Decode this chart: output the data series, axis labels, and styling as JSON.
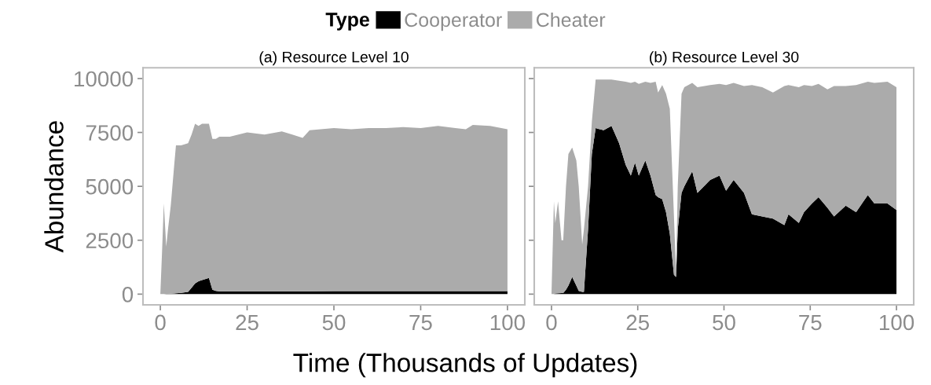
{
  "chart_data": [
    {
      "type": "area",
      "stacked": true,
      "title": "(a) Resource Level 10",
      "xlabel": "Time (Thousands of Updates)",
      "ylabel": "Abundance",
      "legend_title": "Type",
      "legend": "top",
      "grid": false,
      "x": [
        0,
        0.5,
        1,
        1.7,
        2.2,
        3,
        4,
        4.5,
        6,
        8,
        9,
        10,
        11,
        12,
        14,
        15,
        16,
        17,
        20,
        25,
        30,
        35,
        38,
        41,
        43,
        50,
        55,
        60,
        65,
        70,
        75,
        80,
        85,
        88,
        90,
        95,
        100
      ],
      "series": [
        {
          "name": "Cooperator",
          "color": "#000000",
          "values": [
            0,
            0,
            0,
            10,
            10,
            20,
            30,
            40,
            60,
            100,
            300,
            500,
            600,
            650,
            750,
            200,
            150,
            130,
            130,
            130,
            130,
            130,
            130,
            130,
            130,
            140,
            140,
            140,
            140,
            140,
            140,
            140,
            140,
            140,
            140,
            140,
            140
          ]
        },
        {
          "name": "Cheater",
          "color": "#ababab",
          "values": [
            0,
            2000,
            4200,
            2190,
            2990,
            4080,
            5970,
            6860,
            6840,
            6900,
            7100,
            7400,
            7200,
            7250,
            7150,
            7000,
            7050,
            7170,
            7170,
            7370,
            7270,
            7420,
            7270,
            7120,
            7470,
            7560,
            7510,
            7560,
            7560,
            7610,
            7560,
            7660,
            7560,
            7510,
            7710,
            7660,
            7510
          ]
        }
      ],
      "xlim": [
        -5,
        105
      ],
      "xticks": [
        0,
        25,
        50,
        75,
        100
      ],
      "ylim": [
        -500,
        10500
      ],
      "yticks": [
        0,
        2500,
        5000,
        7500,
        10000
      ]
    },
    {
      "type": "area",
      "stacked": true,
      "title": "(b) Resource Level 30",
      "legend": false,
      "grid": false,
      "tick_labels": "x",
      "x": [
        0,
        0.7,
        1.1,
        1.9,
        2.9,
        3.4,
        4.2,
        4.9,
        6.0,
        7.2,
        7.9,
        8.9,
        9.4,
        10.6,
        11.7,
        12.8,
        15.1,
        17.4,
        19.6,
        21.5,
        23.0,
        24.2,
        25.3,
        27.2,
        28.7,
        30.2,
        30.9,
        32.1,
        33.2,
        34.3,
        35.5,
        36.1,
        36.6,
        37.7,
        38.5,
        40.8,
        42.3,
        46.0,
        48.7,
        50.6,
        52.8,
        55.8,
        58.1,
        61.1,
        64.2,
        67.5,
        68.7,
        71.7,
        73.2,
        75.5,
        77.4,
        80.0,
        81.9,
        85.3,
        88.3,
        91.7,
        93.6,
        97.4,
        100
      ],
      "series": [
        {
          "color": "#000000",
          "values": [
            0,
            0,
            30,
            40,
            50,
            50,
            200,
            400,
            800,
            400,
            150,
            100,
            100,
            3000,
            6500,
            7700,
            7600,
            7800,
            7000,
            6000,
            5500,
            6100,
            5500,
            6200,
            5500,
            4600,
            4500,
            4400,
            3800,
            2800,
            900,
            800,
            3000,
            4700,
            5000,
            5700,
            4700,
            5300,
            5500,
            4800,
            5300,
            4700,
            3700,
            3600,
            3500,
            3200,
            3700,
            3300,
            3800,
            4200,
            4500,
            4000,
            3600,
            4100,
            3800,
            4600,
            4200,
            4200,
            3900
          ]
        },
        {
          "color": "#ababab",
          "values": [
            0,
            4300,
            3270,
            4260,
            2450,
            2450,
            4800,
            6100,
            6000,
            5800,
            4850,
            2200,
            2900,
            2000,
            1500,
            2250,
            2350,
            2150,
            2900,
            3850,
            4300,
            3750,
            4250,
            3650,
            4300,
            5250,
            4850,
            5300,
            5500,
            5800,
            2700,
            200,
            2000,
            4600,
            4600,
            4100,
            4900,
            4400,
            4250,
            4900,
            4500,
            4950,
            6000,
            6000,
            5850,
            6450,
            6000,
            6300,
            5900,
            5450,
            5250,
            5500,
            6050,
            5550,
            5900,
            5250,
            5600,
            5650,
            5700
          ]
        }
      ],
      "xlim": [
        -5,
        105
      ],
      "xticks": [
        0,
        25,
        50,
        75,
        100
      ],
      "ylim": [
        -500,
        10500
      ],
      "yticks": [
        0,
        2500,
        5000,
        7500,
        10000
      ]
    }
  ]
}
